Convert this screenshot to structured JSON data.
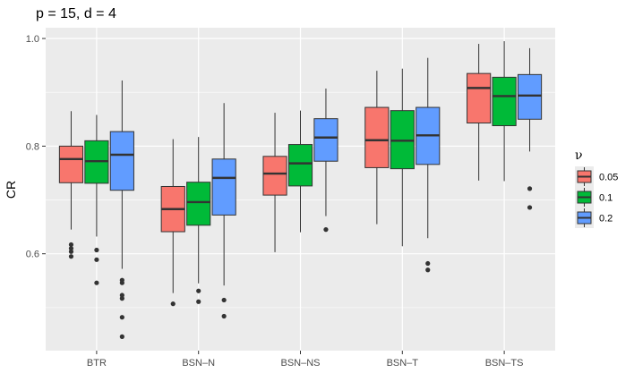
{
  "chart_data": {
    "type": "boxplot",
    "title": "p = 15, d = 4",
    "xlabel": "",
    "ylabel": "CR",
    "ylim": [
      0.42,
      1.02
    ],
    "yticks": [
      0.6,
      0.8,
      1.0
    ],
    "ytick_labels": [
      "0.6",
      "0.8",
      "1.0"
    ],
    "categories": [
      "BTR",
      "BSN–N",
      "BSN–NS",
      "BSN–T",
      "BSN–TS"
    ],
    "legend": {
      "title": "ν",
      "position": "right",
      "entries": [
        {
          "label": "0.05",
          "color": "#F8766D"
        },
        {
          "label": "0.1",
          "color": "#00BA38"
        },
        {
          "label": "0.2",
          "color": "#619CFF"
        }
      ]
    },
    "series": [
      {
        "name": "0.05",
        "color": "#F8766D",
        "boxes": [
          {
            "whisker_low": 0.645,
            "q1": 0.732,
            "median": 0.776,
            "q3": 0.8,
            "whisker_high": 0.865,
            "outliers": [
              0.617,
              0.61,
              0.604,
              0.595
            ]
          },
          {
            "whisker_low": 0.527,
            "q1": 0.641,
            "median": 0.683,
            "q3": 0.725,
            "whisker_high": 0.813,
            "outliers": [
              0.507
            ]
          },
          {
            "whisker_low": 0.603,
            "q1": 0.709,
            "median": 0.749,
            "q3": 0.781,
            "whisker_high": 0.862,
            "outliers": []
          },
          {
            "whisker_low": 0.655,
            "q1": 0.76,
            "median": 0.811,
            "q3": 0.872,
            "whisker_high": 0.94,
            "outliers": []
          },
          {
            "whisker_low": 0.736,
            "q1": 0.843,
            "median": 0.908,
            "q3": 0.935,
            "whisker_high": 0.99,
            "outliers": []
          }
        ]
      },
      {
        "name": "0.1",
        "color": "#00BA38",
        "boxes": [
          {
            "whisker_low": 0.632,
            "q1": 0.731,
            "median": 0.772,
            "q3": 0.81,
            "whisker_high": 0.858,
            "outliers": [
              0.607,
              0.589,
              0.546
            ]
          },
          {
            "whisker_low": 0.545,
            "q1": 0.653,
            "median": 0.696,
            "q3": 0.733,
            "whisker_high": 0.817,
            "outliers": [
              0.531,
              0.511
            ]
          },
          {
            "whisker_low": 0.64,
            "q1": 0.726,
            "median": 0.768,
            "q3": 0.803,
            "whisker_high": 0.866,
            "outliers": []
          },
          {
            "whisker_low": 0.614,
            "q1": 0.758,
            "median": 0.81,
            "q3": 0.866,
            "whisker_high": 0.944,
            "outliers": []
          },
          {
            "whisker_low": 0.735,
            "q1": 0.838,
            "median": 0.893,
            "q3": 0.928,
            "whisker_high": 0.995,
            "outliers": []
          }
        ]
      },
      {
        "name": "0.2",
        "color": "#619CFF",
        "boxes": [
          {
            "whisker_low": 0.572,
            "q1": 0.718,
            "median": 0.784,
            "q3": 0.827,
            "whisker_high": 0.922,
            "outliers": [
              0.551,
              0.546,
              0.523,
              0.517,
              0.482,
              0.446
            ]
          },
          {
            "whisker_low": 0.541,
            "q1": 0.672,
            "median": 0.741,
            "q3": 0.776,
            "whisker_high": 0.88,
            "outliers": [
              0.514,
              0.484
            ]
          },
          {
            "whisker_low": 0.67,
            "q1": 0.772,
            "median": 0.816,
            "q3": 0.851,
            "whisker_high": 0.907,
            "outliers": [
              0.645
            ]
          },
          {
            "whisker_low": 0.629,
            "q1": 0.766,
            "median": 0.82,
            "q3": 0.872,
            "whisker_high": 0.964,
            "outliers": [
              0.582,
              0.57
            ]
          },
          {
            "whisker_low": 0.79,
            "q1": 0.85,
            "median": 0.894,
            "q3": 0.933,
            "whisker_high": 0.982,
            "outliers": [
              0.721,
              0.686
            ]
          }
        ]
      }
    ]
  }
}
